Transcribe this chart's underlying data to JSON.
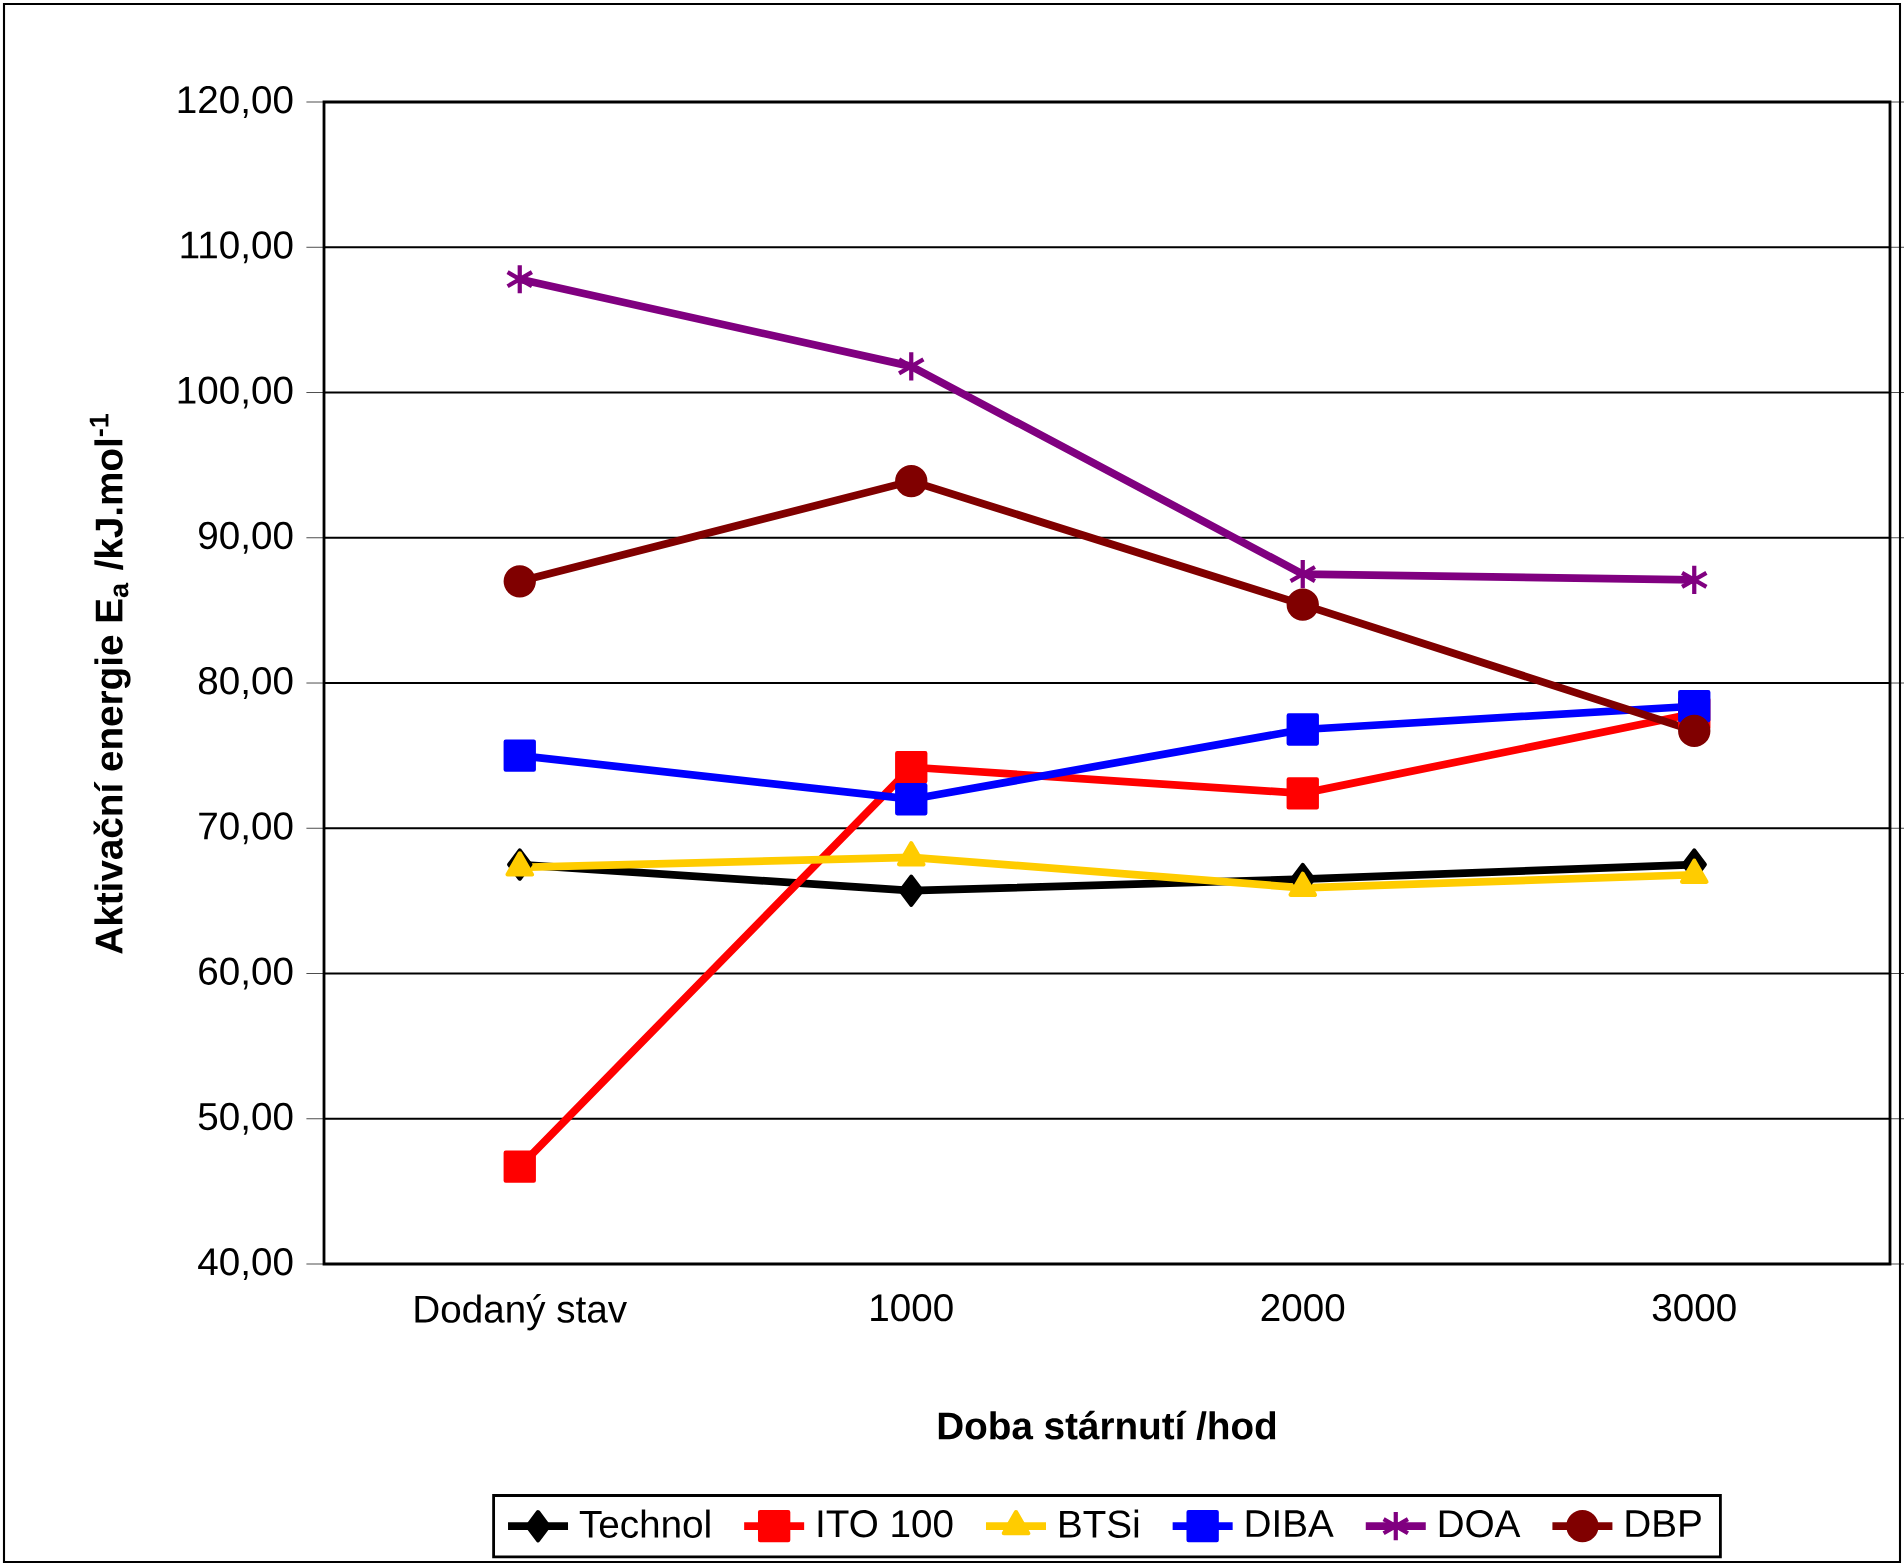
{
  "chart_data": {
    "type": "line",
    "xlabel": "Doba stárnutí  /hod",
    "ylabel": "Aktivační energie  E$_{a}$ /kJ.mol$^{-1}$",
    "categories": [
      "Dodaný stav",
      "1000",
      "2000",
      "3000"
    ],
    "series": [
      {
        "name": "Technol",
        "color": "#000000",
        "marker": "diamond",
        "values": [
          67.5,
          65.7,
          66.5,
          67.5
        ]
      },
      {
        "name": "ITO 100",
        "color": "#ff0000",
        "marker": "square",
        "values": [
          46.7,
          74.2,
          72.4,
          77.9
        ]
      },
      {
        "name": "BTSi",
        "color": "#ffcc00",
        "marker": "triangle",
        "values": [
          67.3,
          68.0,
          65.9,
          66.8
        ]
      },
      {
        "name": "DIBA",
        "color": "#0000ff",
        "marker": "square",
        "values": [
          75.0,
          72.0,
          76.8,
          78.4
        ]
      },
      {
        "name": "DOA",
        "color": "#800080",
        "marker": "cross",
        "values": [
          107.8,
          101.8,
          87.5,
          87.1
        ]
      },
      {
        "name": "DBP",
        "color": "#800000",
        "marker": "circle",
        "values": [
          87.0,
          93.9,
          85.4,
          76.7
        ]
      }
    ],
    "ylim": [
      40,
      120
    ],
    "yticks": [
      {
        "value": 40,
        "label": "40,00"
      },
      {
        "value": 50,
        "label": "50,00"
      },
      {
        "value": 60,
        "label": "60,00"
      },
      {
        "value": 70,
        "label": "70,00"
      },
      {
        "value": 80,
        "label": "80,00"
      },
      {
        "value": 90,
        "label": "90,00"
      },
      {
        "value": 100,
        "label": "100,00"
      },
      {
        "value": 110,
        "label": "110,00"
      },
      {
        "value": 120,
        "label": "120,00"
      }
    ],
    "grid": "y",
    "legend": "bottom",
    "line_style": "solid"
  }
}
